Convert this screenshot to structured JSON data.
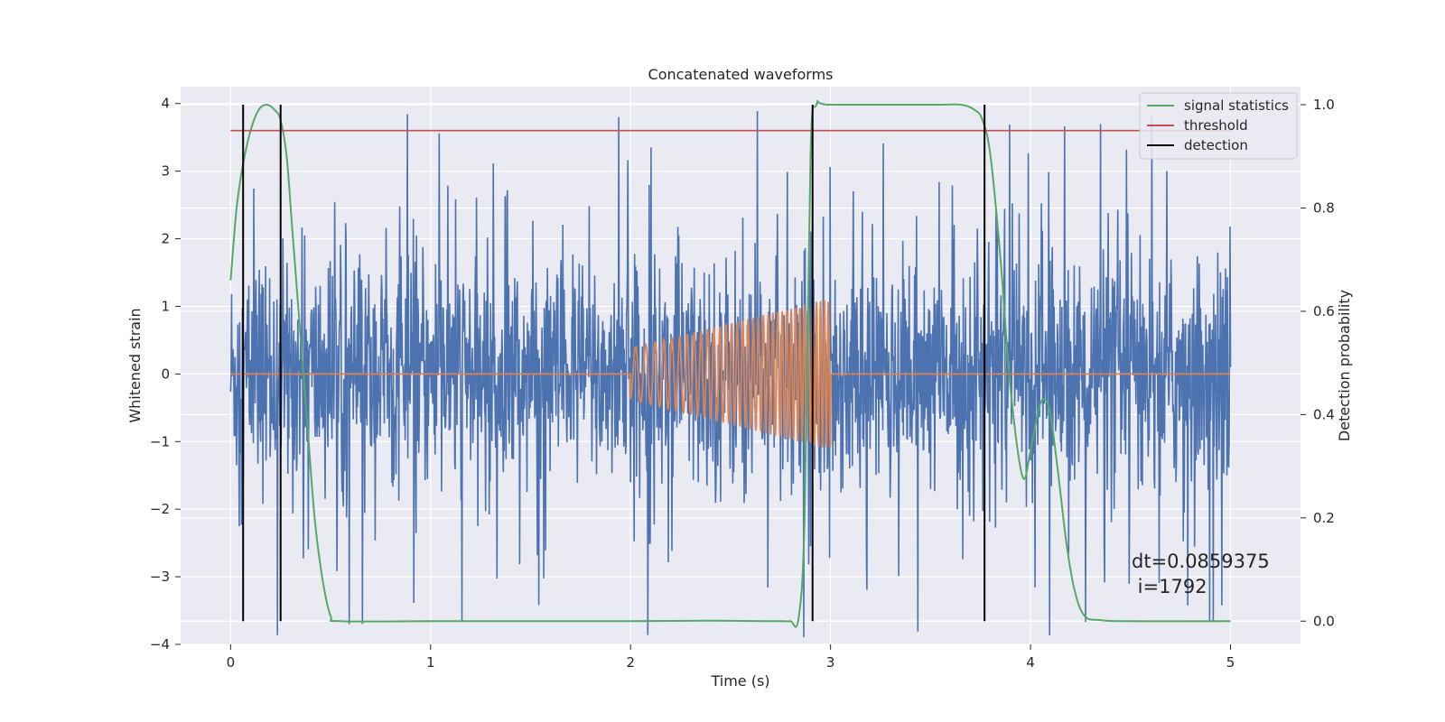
{
  "chart_data": {
    "type": "line",
    "title": "Concatenated waveforms",
    "xlabel": "Time (s)",
    "ylabel": "Whitened strain",
    "y2label": "Detection probability",
    "xlim": [
      -0.25,
      5.35
    ],
    "ylim": [
      -4,
      4.25
    ],
    "y2lim": [
      -0.045,
      1.035
    ],
    "xticks": [
      0,
      1,
      2,
      3,
      4,
      5
    ],
    "yticks": [
      -4,
      -3,
      -2,
      -1,
      0,
      1,
      2,
      3,
      4
    ],
    "y2ticks": [
      0.0,
      0.2,
      0.4,
      0.6,
      0.8,
      1.0
    ],
    "y2tick_labels": [
      "0.0",
      "0.2",
      "0.4",
      "0.6",
      "0.8",
      "1.0"
    ],
    "grid": true,
    "legend_placement": "upper right",
    "legend": [
      "signal statistics",
      "threshold",
      "detection"
    ],
    "annotation": {
      "lines": [
        "dt=0.0859375",
        " i=1792"
      ],
      "x": 4.5,
      "y": -3.05
    },
    "series": [
      {
        "kind": "noise",
        "color": "#4c72b0",
        "x_range": [
          0,
          5
        ],
        "n_points": 2200,
        "core_amplitude": 0.85,
        "spike_max": 3.9
      },
      {
        "kind": "chirp",
        "color": "#dd8452",
        "x_range": [
          0,
          5
        ],
        "chirp_start": 2.0,
        "chirp_end": 3.0,
        "amplitude_start": 0.38,
        "amplitude_end": 1.12,
        "freq_start": 18,
        "freq_end": 52
      },
      {
        "name": "signal statistics",
        "axis": "right",
        "color": "#55a868",
        "x": [
          0.0,
          0.03,
          0.06,
          0.1,
          0.14,
          0.18,
          0.22,
          0.25,
          0.28,
          0.31,
          0.34,
          0.38,
          0.42,
          0.46,
          0.5,
          0.55,
          1.0,
          1.5,
          2.0,
          2.4,
          2.7,
          2.76,
          2.8,
          2.84,
          2.87,
          2.9,
          2.93,
          3.0,
          3.5,
          3.65,
          3.72,
          3.76,
          3.8,
          3.85,
          3.9,
          3.96,
          4.0,
          4.04,
          4.07,
          4.1,
          4.14,
          4.18,
          4.22,
          4.27,
          4.35,
          4.5,
          5.0
        ],
        "y": [
          0.66,
          0.8,
          0.88,
          0.95,
          0.99,
          1.0,
          0.99,
          0.97,
          0.9,
          0.75,
          0.6,
          0.4,
          0.2,
          0.08,
          0.01,
          0.0,
          0.0,
          0.0,
          0.0,
          0.001,
          0.0,
          0.0,
          0.0,
          0.005,
          0.2,
          0.9,
          1.0,
          1.0,
          1.0,
          1.0,
          0.99,
          0.97,
          0.9,
          0.7,
          0.45,
          0.28,
          0.33,
          0.41,
          0.43,
          0.4,
          0.28,
          0.15,
          0.06,
          0.01,
          0.002,
          0.0,
          0.0
        ]
      },
      {
        "name": "threshold",
        "axis": "right",
        "color": "#c44e52",
        "x": [
          0,
          5
        ],
        "y": [
          0.95,
          0.95
        ]
      },
      {
        "name": "detection",
        "color": "#000000",
        "x": [
          0.0625,
          0.25,
          2.91,
          3.77
        ],
        "y_range_right": [
          0,
          1
        ]
      }
    ]
  }
}
